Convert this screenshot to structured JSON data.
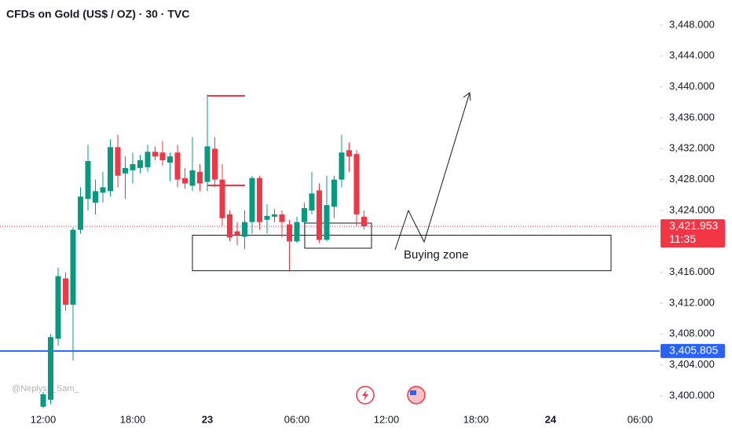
{
  "chart_data": {
    "type": "candlestick",
    "title": "CFDs on Gold (US$ / OZ) · 30 · TVC",
    "watermark": "@Neplys__Sam_",
    "categories": [
      "12:00",
      null,
      null,
      null,
      null,
      null,
      null,
      null,
      null,
      null,
      null,
      null,
      "18:00",
      null,
      null,
      null,
      null,
      null,
      null,
      null,
      null,
      null,
      "23",
      null,
      null,
      null,
      null,
      null,
      null,
      null,
      null,
      null,
      null,
      null,
      "06:00",
      null,
      null,
      null,
      null,
      null,
      null,
      null,
      null,
      null,
      null,
      null,
      "12:00",
      null,
      null,
      null,
      null,
      null,
      null,
      null,
      null,
      null,
      null,
      null,
      "18:00",
      null,
      null,
      null,
      null,
      null,
      null,
      null,
      null,
      null,
      "24",
      null,
      null,
      null,
      null,
      null,
      null,
      null,
      null,
      null,
      null,
      null,
      "06:00",
      null,
      null
    ],
    "open": [
      3398.6,
      3399.5,
      3407.4,
      3415.2,
      3411.8,
      3421.5,
      3425.5,
      3425.0,
      3426.3,
      3426.5,
      3432.2,
      3428.8,
      3429.2,
      3429.5,
      3429.6,
      3431.6,
      3431.5,
      3430.2,
      3431.5,
      3428.2,
      3427.2,
      3429.0,
      3427.7,
      3432.0,
      3428.0,
      3423.5,
      3421.3,
      3420.6,
      3422.5,
      3428.2,
      3422.8,
      3423.2,
      3423.5,
      3422.2,
      3420.0,
      3422.5,
      3424.0,
      3426.6,
      3420.2,
      3424.5,
      3428.0,
      3431.8,
      3431.3,
      3423.2,
      null,
      null,
      null,
      null,
      null,
      null,
      null,
      null,
      null,
      null,
      null,
      null,
      null,
      null,
      null,
      null,
      null,
      null,
      null,
      null,
      null,
      null,
      null,
      null,
      null,
      null,
      null,
      null,
      null,
      null,
      null,
      null,
      null,
      null,
      null,
      null,
      null,
      null,
      null
    ],
    "high": [
      3400.5,
      3408.0,
      3416.6,
      3416.0,
      3421.8,
      3427.0,
      3432.5,
      3428.0,
      3429.0,
      3433.2,
      3433.8,
      3431.0,
      3431.5,
      3431.2,
      3432.5,
      3432.3,
      3433.0,
      3431.5,
      3432.5,
      3429.5,
      3433.5,
      3430.0,
      3439.0,
      3433.5,
      3430.0,
      3424.0,
      3422.5,
      3424.0,
      3428.5,
      3428.5,
      3424.8,
      3424.2,
      3424.0,
      3422.8,
      3423.2,
      3425.0,
      3429.0,
      3427.5,
      3428.5,
      3428.5,
      3433.8,
      3432.8,
      3431.8,
      3424.0,
      null,
      null,
      null,
      null,
      null,
      null,
      null,
      null,
      null,
      null,
      null,
      null,
      null,
      null,
      null,
      null,
      null,
      null,
      null,
      null,
      null,
      null,
      null,
      null,
      null,
      null,
      null,
      null,
      null,
      null,
      null,
      null,
      null,
      null,
      null,
      null,
      null,
      null,
      null
    ],
    "low": [
      3398.4,
      3398.9,
      3406.5,
      3411.0,
      3404.6,
      3421.0,
      3424.0,
      3423.5,
      3425.0,
      3425.8,
      3427.0,
      3425.5,
      3427.5,
      3428.8,
      3429.0,
      3430.5,
      3429.8,
      3427.8,
      3427.0,
      3426.8,
      3426.5,
      3426.5,
      3426.5,
      3427.0,
      3422.0,
      3420.0,
      3419.5,
      3419.0,
      3421.0,
      3421.5,
      3421.0,
      3422.5,
      3420.5,
      3416.1,
      3419.8,
      3421.0,
      3423.5,
      3419.8,
      3420.0,
      3423.0,
      3427.0,
      3429.0,
      3422.0,
      3421.5,
      null,
      null,
      null,
      null,
      null,
      null,
      null,
      null,
      null,
      null,
      null,
      null,
      null,
      null,
      null,
      null,
      null,
      null,
      null,
      null,
      null,
      null,
      null,
      null,
      null,
      null,
      null,
      null,
      null,
      null,
      null,
      null,
      null,
      null,
      null,
      null,
      null,
      null,
      null
    ],
    "close": [
      3400.2,
      3407.6,
      3415.5,
      3411.8,
      3421.5,
      3425.8,
      3430.4,
      3426.5,
      3427.0,
      3432.2,
      3428.5,
      3429.5,
      3430.0,
      3430.5,
      3431.6,
      3431.0,
      3430.5,
      3431.0,
      3428.0,
      3427.5,
      3429.2,
      3427.5,
      3432.3,
      3428.0,
      3423.0,
      3420.5,
      3420.8,
      3422.5,
      3428.2,
      3422.5,
      3423.3,
      3423.5,
      3422.5,
      3420.0,
      3422.5,
      3424.3,
      3426.2,
      3420.2,
      3424.7,
      3428.0,
      3431.5,
      3431.0,
      3423.5,
      3421.953,
      null,
      null,
      null,
      null,
      null,
      null,
      null,
      null,
      null,
      null,
      null,
      null,
      null,
      null,
      null,
      null,
      null,
      null,
      null,
      null,
      null,
      null,
      null,
      null,
      null,
      null,
      null,
      null,
      null,
      null,
      null,
      null,
      null,
      null,
      null,
      null,
      null,
      null,
      null
    ],
    "up_color": "#089981",
    "down_color": "#f23645",
    "ylim": [
      3398.37,
      3451.25
    ],
    "yticks": [
      {
        "value": 3400,
        "label": "3,400.000"
      },
      {
        "value": 3404,
        "label": "3,404.000"
      },
      {
        "value": 3408,
        "label": "3,408.000"
      },
      {
        "value": 3412,
        "label": "3,412.000"
      },
      {
        "value": 3416,
        "label": "3,416.000"
      },
      {
        "value": 3420,
        "label": "3,420.000"
      },
      {
        "value": 3424,
        "label": "3,424.000"
      },
      {
        "value": 3428,
        "label": "3,428.000"
      },
      {
        "value": 3432,
        "label": "3,432.000"
      },
      {
        "value": 3436,
        "label": "3,436.000"
      },
      {
        "value": 3440,
        "label": "3,440.000"
      },
      {
        "value": 3444,
        "label": "3,444.000"
      },
      {
        "value": 3448,
        "label": "3,448.000"
      }
    ],
    "price_lines": [
      {
        "value": 3421.953,
        "label": "3,421.953",
        "sublabel": "11:35",
        "color": "#f23645",
        "style": "dotted"
      },
      {
        "value": 3405.805,
        "label": "3,405.805",
        "color": "#2962ff",
        "style": "solid"
      }
    ],
    "buying_zone": {
      "label": "Buying zone",
      "top": 3420.8,
      "bottom": 3416.2
    }
  }
}
